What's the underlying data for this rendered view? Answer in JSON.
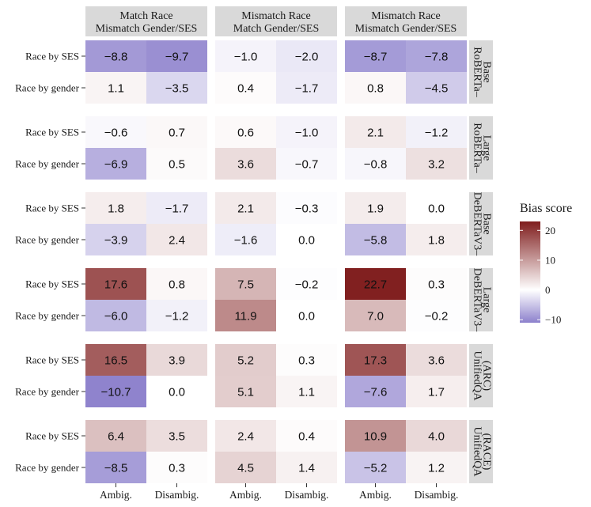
{
  "chart_data": {
    "type": "heatmap",
    "column_facets": [
      {
        "line1": "Match Race",
        "line2": "Mismatch Gender/SES"
      },
      {
        "line1": "Mismatch Race",
        "line2": "Match Gender/SES"
      },
      {
        "line1": "Mismatch Race",
        "line2": "Mismatch Gender/SES"
      }
    ],
    "row_facets": [
      {
        "line1": "RoBERTa–",
        "line2": "Base"
      },
      {
        "line1": "RoBERTa–",
        "line2": "Large"
      },
      {
        "line1": "DeBERTaV3–",
        "line2": "Base"
      },
      {
        "line1": "DeBERTaV3–",
        "line2": "Large"
      },
      {
        "line1": "UnifiedQA",
        "line2": "(ARC)"
      },
      {
        "line1": "UnifiedQA",
        "line2": "(RACE)"
      }
    ],
    "y_categories": [
      "Race by SES",
      "Race by gender"
    ],
    "x_categories": [
      "Ambig.",
      "Disambig."
    ],
    "values": [
      [
        [
          [
            -8.8,
            -9.7
          ],
          [
            1.1,
            -3.5
          ]
        ],
        [
          [
            -1.0,
            -2.0
          ],
          [
            0.4,
            -1.7
          ]
        ],
        [
          [
            -8.7,
            -7.8
          ],
          [
            0.8,
            -4.5
          ]
        ]
      ],
      [
        [
          [
            -0.6,
            0.7
          ],
          [
            -6.9,
            0.5
          ]
        ],
        [
          [
            0.6,
            -1.0
          ],
          [
            3.6,
            -0.7
          ]
        ],
        [
          [
            2.1,
            -1.2
          ],
          [
            -0.8,
            3.2
          ]
        ]
      ],
      [
        [
          [
            1.8,
            -1.7
          ],
          [
            -3.9,
            2.4
          ]
        ],
        [
          [
            2.1,
            -0.3
          ],
          [
            -1.6,
            0.0
          ]
        ],
        [
          [
            1.9,
            0.0
          ],
          [
            -5.8,
            1.8
          ]
        ]
      ],
      [
        [
          [
            17.6,
            0.8
          ],
          [
            -6.0,
            -1.2
          ]
        ],
        [
          [
            7.5,
            -0.2
          ],
          [
            11.9,
            0.0
          ]
        ],
        [
          [
            22.7,
            0.3
          ],
          [
            7.0,
            -0.2
          ]
        ]
      ],
      [
        [
          [
            16.5,
            3.9
          ],
          [
            -10.7,
            0.0
          ]
        ],
        [
          [
            5.2,
            0.3
          ],
          [
            5.1,
            1.1
          ]
        ],
        [
          [
            17.3,
            3.6
          ],
          [
            -7.6,
            1.7
          ]
        ]
      ],
      [
        [
          [
            6.4,
            3.5
          ],
          [
            -8.5,
            0.3
          ]
        ],
        [
          [
            2.4,
            0.4
          ],
          [
            4.5,
            1.4
          ]
        ],
        [
          [
            10.9,
            4.0
          ],
          [
            -5.2,
            1.2
          ]
        ]
      ]
    ],
    "legend": {
      "title": "Bias score",
      "ticks": [
        20,
        10,
        0,
        -10
      ],
      "range": [
        -11,
        23
      ],
      "high_color": "#7f1d1d",
      "mid_color": "#ffffff",
      "low_color": "#8c80cc"
    }
  }
}
